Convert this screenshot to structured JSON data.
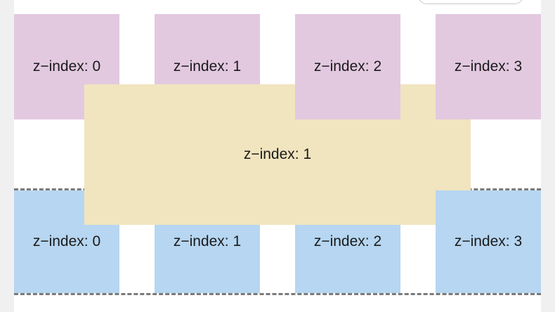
{
  "top_row": {
    "boxes": [
      {
        "label": "z−index: 0"
      },
      {
        "label": "z−index: 1"
      },
      {
        "label": "z−index: 2"
      },
      {
        "label": "z−index: 3"
      }
    ]
  },
  "overlay": {
    "label": "z−index: 1"
  },
  "bottom_row": {
    "boxes": [
      {
        "label": "z−index: 0"
      },
      {
        "label": "z−index: 1"
      },
      {
        "label": "z−index: 2"
      },
      {
        "label": "z−index: 3"
      }
    ]
  },
  "colors": {
    "top_box": "#e2c9e0",
    "bottom_box": "#b6d6f1",
    "overlay": "#f1e5bf",
    "dashed_border": "#7a7a7a"
  }
}
